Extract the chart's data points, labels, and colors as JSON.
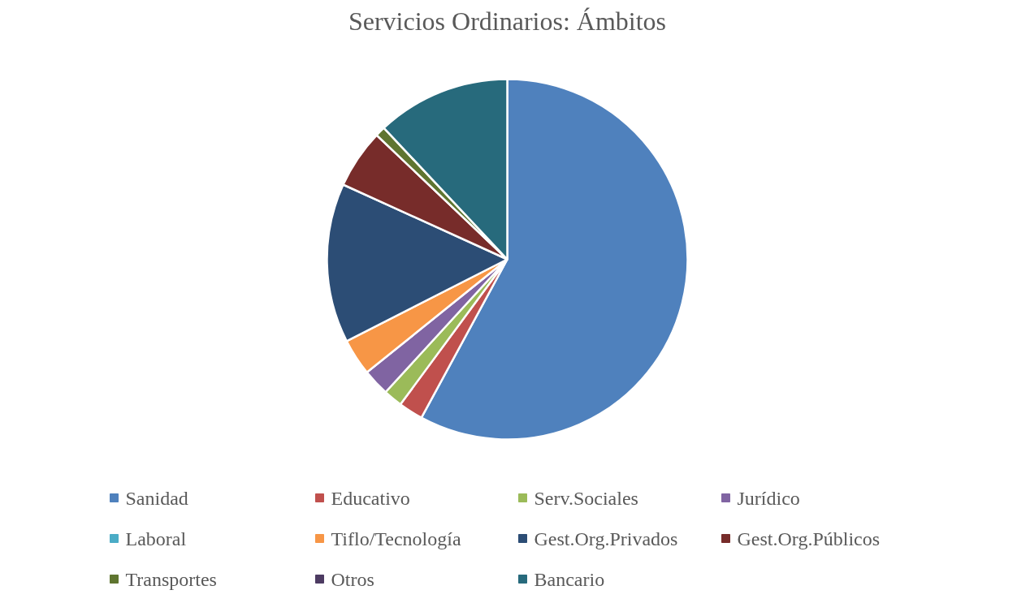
{
  "chart_data": {
    "type": "pie",
    "title": "Servicios Ordinarios: Ámbitos",
    "categories": [
      "Sanidad",
      "Educativo",
      "Serv.Sociales",
      "Jurídico",
      "Laboral",
      "Tiflo/Tecnología",
      "Gest.Org.Privados",
      "Gest.Org.Públicos",
      "Transportes",
      "Otros",
      "Bancario"
    ],
    "values": [
      57.9,
      2.2,
      1.7,
      2.4,
      0,
      3.3,
      14.3,
      5.3,
      0.9,
      0,
      12.0
    ],
    "colors": [
      "#4f81bd",
      "#c0504d",
      "#9bbb59",
      "#8064a2",
      "#4bacc6",
      "#f79646",
      "#2c4d75",
      "#772c2a",
      "#5f7530",
      "#4d3b62",
      "#276a7c"
    ],
    "legend": "bottom"
  }
}
